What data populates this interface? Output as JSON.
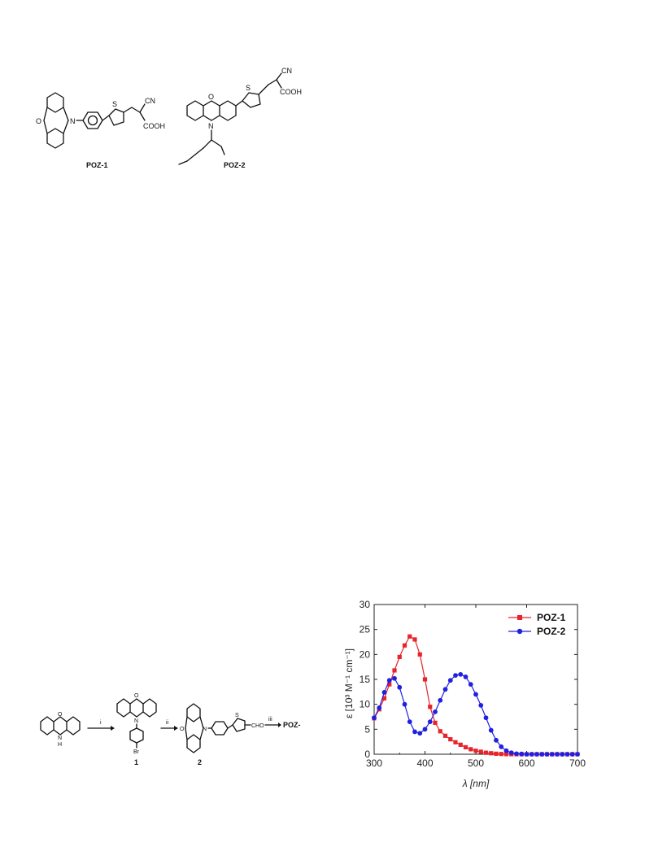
{
  "figure_structures": {
    "compound_1": {
      "name": "POZ-1",
      "heteroatom": "O",
      "nitrogen": "N",
      "thiophene_s": "S",
      "cn": "CN",
      "acid": "COOH"
    },
    "compound_2": {
      "name": "POZ-2",
      "heteroatom": "O",
      "nitrogen": "N",
      "thiophene_s": "S",
      "cn": "CN",
      "acid": "COOH"
    }
  },
  "scheme": {
    "start_o": "O",
    "start_nh_n": "N",
    "start_nh_h": "H",
    "step_labels": [
      "i",
      "ii",
      "iii"
    ],
    "int1_o": "O",
    "int1_n": "N",
    "int1_br": "Br",
    "int1_number": "1",
    "int2_o": "O",
    "int2_n": "N",
    "int2_s": "S",
    "int2_cho": "CHO",
    "int2_number": "2",
    "product": "POZ-1"
  },
  "chart_data": {
    "type": "line",
    "xlabel": "λ [nm]",
    "ylabel": "ε [10³ M⁻¹ cm⁻¹]",
    "xlim": [
      300,
      700
    ],
    "ylim": [
      0,
      30
    ],
    "xticks": [
      "300",
      "400",
      "500",
      "600",
      "700"
    ],
    "yticks": [
      "0",
      "5",
      "10",
      "15",
      "20",
      "25",
      "30"
    ],
    "legend_position": "top-right",
    "grid": false,
    "series": [
      {
        "name": "POZ-1",
        "color": "#e8242b",
        "marker": "square",
        "x": [
          300,
          310,
          320,
          330,
          340,
          350,
          360,
          370,
          380,
          390,
          400,
          410,
          420,
          430,
          440,
          450,
          460,
          470,
          480,
          490,
          500,
          510,
          520,
          530,
          540,
          550,
          560,
          570,
          580,
          590,
          600,
          610,
          620,
          630,
          640,
          650,
          660,
          670,
          680,
          690,
          700
        ],
        "y": [
          7.2,
          9.0,
          11.2,
          14.0,
          16.8,
          19.5,
          21.8,
          23.6,
          23.0,
          20.0,
          15.0,
          9.5,
          6.3,
          4.6,
          3.7,
          3.0,
          2.4,
          1.9,
          1.4,
          1.0,
          0.7,
          0.5,
          0.3,
          0.2,
          0.1,
          0.05,
          0.02,
          0.01,
          0,
          0,
          0,
          0,
          0,
          0,
          0,
          0,
          0,
          0,
          0,
          0,
          0
        ]
      },
      {
        "name": "POZ-2",
        "color": "#2020e0",
        "marker": "circle",
        "x": [
          300,
          310,
          320,
          330,
          340,
          350,
          360,
          370,
          380,
          390,
          400,
          410,
          420,
          430,
          440,
          450,
          460,
          470,
          480,
          490,
          500,
          510,
          520,
          530,
          540,
          550,
          560,
          570,
          580,
          590,
          600,
          610,
          620,
          630,
          640,
          650,
          660,
          670,
          680,
          690,
          700
        ],
        "y": [
          7.3,
          9.3,
          12.4,
          14.8,
          15.2,
          13.4,
          10.0,
          6.5,
          4.5,
          4.2,
          5.0,
          6.5,
          8.5,
          10.8,
          13.0,
          14.8,
          15.8,
          16.0,
          15.5,
          14.0,
          12.0,
          9.8,
          7.3,
          4.8,
          2.8,
          1.5,
          0.7,
          0.3,
          0.1,
          0.05,
          0,
          0,
          0,
          0,
          0,
          0,
          0,
          0,
          0,
          0,
          0
        ]
      }
    ]
  }
}
